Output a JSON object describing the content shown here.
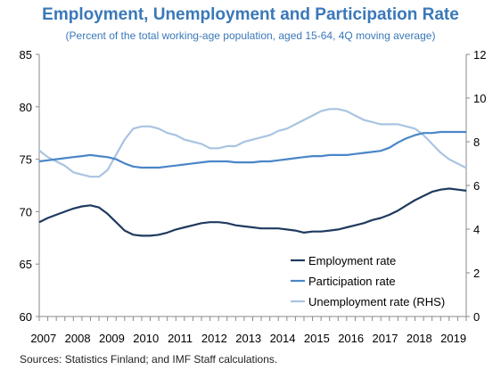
{
  "chart_data": {
    "type": "line",
    "title": "Employment, Unemployment and Participation Rate",
    "subtitle": "(Percent of the total working-age population, aged 15-64, 4Q moving average)",
    "source": "Sources: Statistics Finland; and IMF Staff calculations.",
    "x_tick_labels": [
      "2007",
      "2008",
      "2009",
      "2010",
      "2011",
      "2012",
      "2013",
      "2014",
      "2015",
      "2016",
      "2017",
      "2018",
      "2019"
    ],
    "x_range": [
      2007.0,
      2019.5
    ],
    "y_left": {
      "range": [
        60,
        85
      ],
      "ticks": [
        60,
        65,
        70,
        75,
        80,
        85
      ]
    },
    "y_right": {
      "range": [
        0,
        12
      ],
      "ticks": [
        0,
        2,
        4,
        6,
        8,
        10,
        12
      ]
    },
    "legend_position": "bottom-right",
    "grid": false,
    "series": [
      {
        "name": "Employment rate",
        "axis": "left",
        "color": "#1f3a5f",
        "x": [
          2007.0,
          2007.25,
          2007.5,
          2007.75,
          2008.0,
          2008.25,
          2008.5,
          2008.75,
          2009.0,
          2009.25,
          2009.5,
          2009.75,
          2010.0,
          2010.25,
          2010.5,
          2010.75,
          2011.0,
          2011.25,
          2011.5,
          2011.75,
          2012.0,
          2012.25,
          2012.5,
          2012.75,
          2013.0,
          2013.25,
          2013.5,
          2013.75,
          2014.0,
          2014.25,
          2014.5,
          2014.75,
          2015.0,
          2015.25,
          2015.5,
          2015.75,
          2016.0,
          2016.25,
          2016.5,
          2016.75,
          2017.0,
          2017.25,
          2017.5,
          2017.75,
          2018.0,
          2018.25,
          2018.5,
          2018.75,
          2019.0,
          2019.25,
          2019.5
        ],
        "values": [
          69.0,
          69.4,
          69.7,
          70.0,
          70.3,
          70.5,
          70.6,
          70.4,
          69.8,
          69.0,
          68.2,
          67.8,
          67.7,
          67.7,
          67.8,
          68.0,
          68.3,
          68.5,
          68.7,
          68.9,
          69.0,
          69.0,
          68.9,
          68.7,
          68.6,
          68.5,
          68.4,
          68.4,
          68.4,
          68.3,
          68.2,
          68.0,
          68.1,
          68.1,
          68.2,
          68.3,
          68.5,
          68.7,
          68.9,
          69.2,
          69.4,
          69.7,
          70.1,
          70.6,
          71.1,
          71.5,
          71.9,
          72.1,
          72.2,
          72.1,
          72.0
        ]
      },
      {
        "name": "Participation rate",
        "axis": "left",
        "color": "#4a86c8",
        "x": [
          2007.0,
          2007.25,
          2007.5,
          2007.75,
          2008.0,
          2008.25,
          2008.5,
          2008.75,
          2009.0,
          2009.25,
          2009.5,
          2009.75,
          2010.0,
          2010.25,
          2010.5,
          2010.75,
          2011.0,
          2011.25,
          2011.5,
          2011.75,
          2012.0,
          2012.25,
          2012.5,
          2012.75,
          2013.0,
          2013.25,
          2013.5,
          2013.75,
          2014.0,
          2014.25,
          2014.5,
          2014.75,
          2015.0,
          2015.25,
          2015.5,
          2015.75,
          2016.0,
          2016.25,
          2016.5,
          2016.75,
          2017.0,
          2017.25,
          2017.5,
          2017.75,
          2018.0,
          2018.25,
          2018.5,
          2018.75,
          2019.0,
          2019.25,
          2019.5
        ],
        "values": [
          74.8,
          74.9,
          75.0,
          75.1,
          75.2,
          75.3,
          75.4,
          75.3,
          75.2,
          75.0,
          74.6,
          74.3,
          74.2,
          74.2,
          74.2,
          74.3,
          74.4,
          74.5,
          74.6,
          74.7,
          74.8,
          74.8,
          74.8,
          74.7,
          74.7,
          74.7,
          74.8,
          74.8,
          74.9,
          75.0,
          75.1,
          75.2,
          75.3,
          75.3,
          75.4,
          75.4,
          75.4,
          75.5,
          75.6,
          75.7,
          75.8,
          76.1,
          76.6,
          77.0,
          77.3,
          77.5,
          77.5,
          77.6,
          77.6,
          77.6,
          77.6
        ]
      },
      {
        "name": "Unemployment rate (RHS)",
        "axis": "right",
        "color": "#a9c4e2",
        "x": [
          2007.0,
          2007.25,
          2007.5,
          2007.75,
          2008.0,
          2008.25,
          2008.5,
          2008.75,
          2009.0,
          2009.25,
          2009.5,
          2009.75,
          2010.0,
          2010.25,
          2010.5,
          2010.75,
          2011.0,
          2011.25,
          2011.5,
          2011.75,
          2012.0,
          2012.25,
          2012.5,
          2012.75,
          2013.0,
          2013.25,
          2013.5,
          2013.75,
          2014.0,
          2014.25,
          2014.5,
          2014.75,
          2015.0,
          2015.25,
          2015.5,
          2015.75,
          2016.0,
          2016.25,
          2016.5,
          2016.75,
          2017.0,
          2017.25,
          2017.5,
          2017.75,
          2018.0,
          2018.25,
          2018.5,
          2018.75,
          2019.0,
          2019.25,
          2019.5
        ],
        "values": [
          7.6,
          7.3,
          7.1,
          6.9,
          6.6,
          6.5,
          6.4,
          6.4,
          6.7,
          7.4,
          8.1,
          8.6,
          8.7,
          8.7,
          8.6,
          8.4,
          8.3,
          8.1,
          8.0,
          7.9,
          7.7,
          7.7,
          7.8,
          7.8,
          8.0,
          8.1,
          8.2,
          8.3,
          8.5,
          8.6,
          8.8,
          9.0,
          9.2,
          9.4,
          9.5,
          9.5,
          9.4,
          9.2,
          9.0,
          8.9,
          8.8,
          8.8,
          8.8,
          8.7,
          8.6,
          8.3,
          7.9,
          7.5,
          7.2,
          7.0,
          6.8
        ]
      }
    ]
  }
}
